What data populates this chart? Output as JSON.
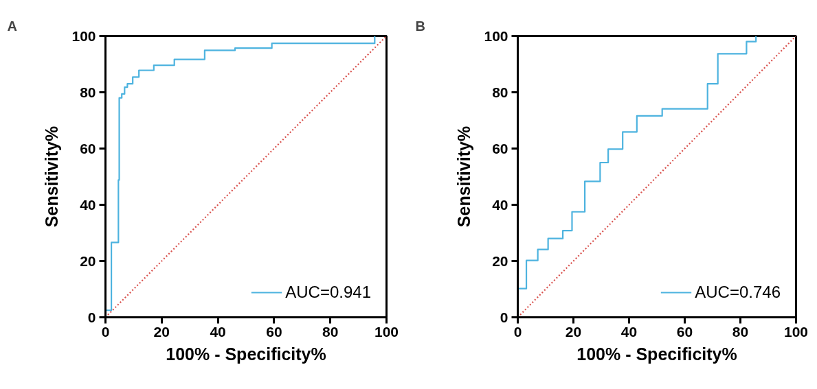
{
  "chart_data": [
    {
      "type": "line",
      "title": "A",
      "xlabel": "100% - Specificity%",
      "ylabel": "Sensitivity%",
      "xlim": [
        0,
        100
      ],
      "ylim": [
        0,
        100
      ],
      "xticks": [
        0,
        20,
        40,
        60,
        80,
        100
      ],
      "yticks": [
        0,
        20,
        40,
        60,
        80,
        100
      ],
      "legend": "bottom right",
      "series": [
        {
          "name": "AUC=0.941",
          "color": "#4db3df",
          "x": [
            0,
            2.1,
            2.1,
            4.6,
            4.6,
            4.9,
            4.9,
            5.8,
            5.8,
            6.8,
            6.8,
            7.8,
            7.8,
            9.7,
            9.7,
            11.9,
            11.9,
            17.2,
            17.2,
            24.5,
            24.5,
            35.3,
            35.3,
            46.1,
            46.1,
            59.2,
            59.2,
            95.8,
            95.8
          ],
          "values": [
            2.5,
            2.5,
            26.6,
            26.6,
            48.8,
            48.8,
            78,
            78,
            79.4,
            79.4,
            81.8,
            81.8,
            83,
            83,
            85.4,
            85.4,
            87.8,
            87.8,
            89.6,
            89.6,
            91.7,
            91.7,
            94.9,
            94.9,
            95.7,
            95.7,
            97.4,
            97.4,
            100
          ]
        },
        {
          "color": "#d9534f",
          "line_style": "dotted",
          "x": [
            0,
            100
          ],
          "values": [
            0,
            100
          ]
        }
      ]
    },
    {
      "type": "line",
      "title": "B",
      "xlabel": "100% - Specificity%",
      "ylabel": "Sensitivity%",
      "xlim": [
        0,
        100
      ],
      "ylim": [
        0,
        100
      ],
      "xticks": [
        0,
        20,
        40,
        60,
        80,
        100
      ],
      "yticks": [
        0,
        20,
        40,
        60,
        80,
        100
      ],
      "legend": "bottom right",
      "series": [
        {
          "name": "AUC=0.746",
          "color": "#4db3df",
          "x": [
            0,
            3.1,
            3.1,
            7.2,
            7.2,
            10.9,
            10.9,
            16.2,
            16.2,
            19.5,
            19.5,
            24.1,
            24.1,
            29.6,
            29.6,
            32.5,
            32.5,
            37.7,
            37.7,
            42.8,
            42.8,
            51.9,
            51.9,
            68.2,
            68.2,
            71.9,
            71.9,
            82.2,
            82.2,
            85.6,
            85.6
          ],
          "values": [
            10.2,
            10.2,
            20.2,
            20.2,
            24.1,
            24.1,
            28.0,
            28.0,
            30.8,
            30.8,
            37.5,
            37.5,
            48.3,
            48.3,
            55.0,
            55.0,
            59.8,
            59.8,
            65.9,
            65.9,
            71.6,
            71.6,
            74.1,
            74.1,
            83.0,
            83.0,
            93.7,
            93.7,
            98,
            98,
            100
          ]
        },
        {
          "color": "#d9534f",
          "line_style": "dotted",
          "x": [
            0,
            100
          ],
          "values": [
            0,
            100
          ]
        }
      ]
    }
  ]
}
